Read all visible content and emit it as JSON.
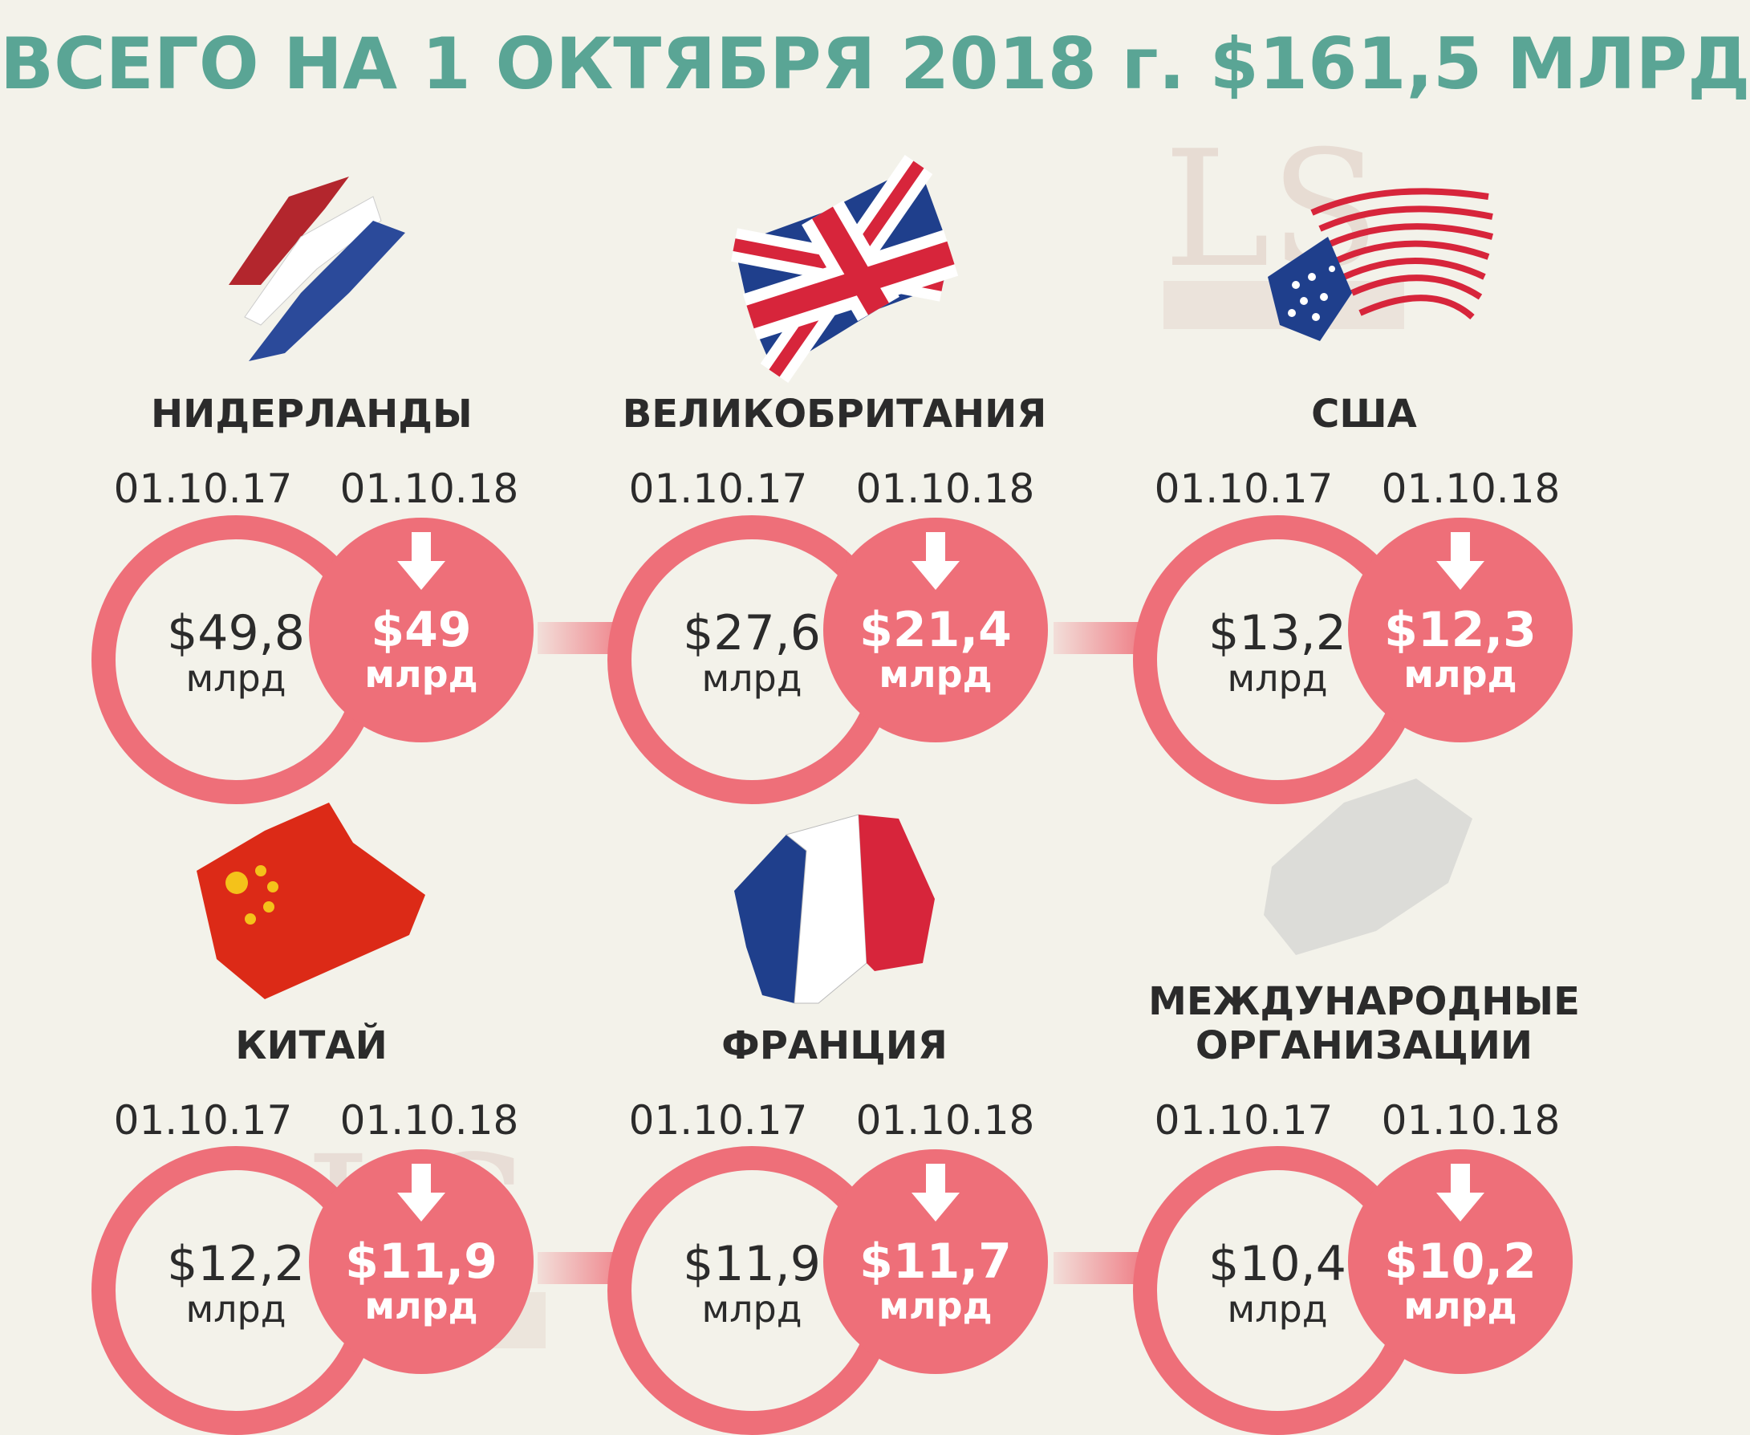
{
  "title": "ВСЕГО НА 1 ОКТЯБРЯ 2018 г. $161,5 МЛРД",
  "unit": "млрд",
  "watermark": "LSM.KZ",
  "colors": {
    "title": "#5aa595",
    "accent": "#ee6f79",
    "background": "#f3f2ea",
    "text": "#2b2b2b"
  },
  "countries": [
    {
      "name": "НИДЕРЛАНДЫ",
      "flag_icon": "netherlands-flag-icon",
      "date_prev": "01.10.17",
      "date_curr": "01.10.18",
      "value_prev": "$49,8",
      "value_curr": "$49",
      "trend": "down"
    },
    {
      "name": "ВЕЛИКОБРИТАНИЯ",
      "flag_icon": "uk-flag-icon",
      "date_prev": "01.10.17",
      "date_curr": "01.10.18",
      "value_prev": "$27,6",
      "value_curr": "$21,4",
      "trend": "down"
    },
    {
      "name": "США",
      "flag_icon": "usa-flag-icon",
      "date_prev": "01.10.17",
      "date_curr": "01.10.18",
      "value_prev": "$13,2",
      "value_curr": "$12,3",
      "trend": "down"
    },
    {
      "name": "КИТАЙ",
      "flag_icon": "china-flag-icon",
      "date_prev": "01.10.17",
      "date_curr": "01.10.18",
      "value_prev": "$12,2",
      "value_curr": "$11,9",
      "trend": "down"
    },
    {
      "name": "ФРАНЦИЯ",
      "flag_icon": "france-flag-icon",
      "date_prev": "01.10.17",
      "date_curr": "01.10.18",
      "value_prev": "$11,9",
      "value_curr": "$11,7",
      "trend": "down"
    },
    {
      "name_line1": "МЕЖДУНАРОДНЫЕ",
      "name_line2": "ОРГАНИЗАЦИИ",
      "flag_icon": "gray-brush-flag-icon",
      "date_prev": "01.10.17",
      "date_curr": "01.10.18",
      "value_prev": "$10,4",
      "value_curr": "$10,2",
      "trend": "down"
    }
  ]
}
